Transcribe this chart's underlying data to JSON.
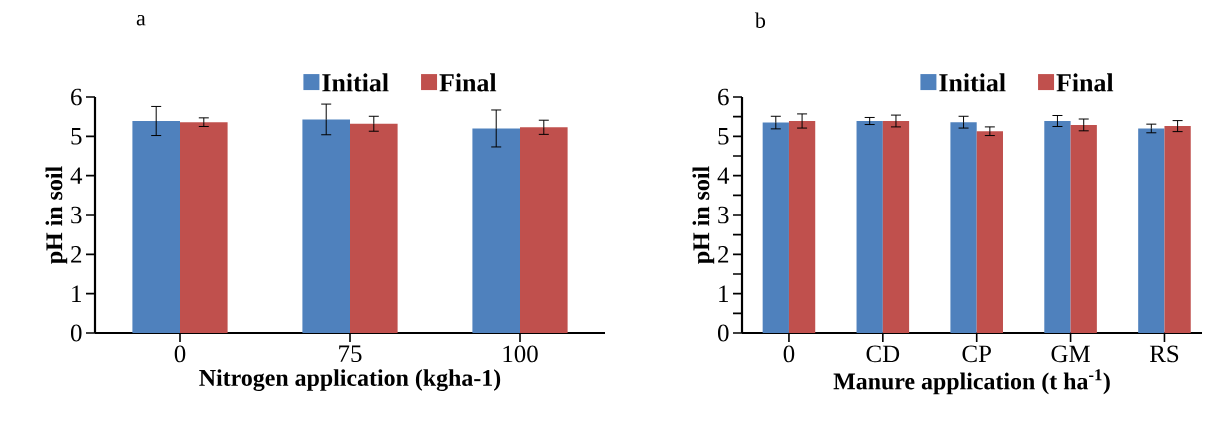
{
  "chart_data": [
    {
      "type": "bar",
      "title": "a",
      "xlabel": "Nitrogen application (kgha-1)",
      "ylabel": "pH in soil",
      "categories": [
        "0",
        "75",
        "100"
      ],
      "series": [
        {
          "name": "Initial",
          "color": "#4f81bd",
          "values": [
            5.39,
            5.43,
            5.2
          ],
          "errors": [
            0.37,
            0.39,
            0.47
          ]
        },
        {
          "name": "Final",
          "color": "#c0504d",
          "values": [
            5.36,
            5.32,
            5.23
          ],
          "errors": [
            0.11,
            0.19,
            0.18
          ]
        }
      ],
      "ylim": [
        0,
        6
      ],
      "yticks": [
        0,
        1,
        2,
        3,
        4,
        5,
        6
      ],
      "legend": "top",
      "grid": false
    },
    {
      "type": "bar",
      "title": "b",
      "xlabel": "Manure application (t ha$^{-1}$)",
      "ylabel": "pH in soil",
      "categories": [
        "0",
        "CD",
        "CP",
        "GM",
        "RS"
      ],
      "series": [
        {
          "name": "Initial",
          "color": "#4f81bd",
          "values": [
            5.35,
            5.39,
            5.36,
            5.39,
            5.2
          ],
          "errors": [
            0.16,
            0.09,
            0.15,
            0.14,
            0.11
          ]
        },
        {
          "name": "Final",
          "color": "#c0504d",
          "values": [
            5.39,
            5.39,
            5.13,
            5.29,
            5.26
          ],
          "errors": [
            0.18,
            0.15,
            0.11,
            0.15,
            0.14
          ]
        }
      ],
      "ylim": [
        0,
        6
      ],
      "yticks": [
        0,
        {
          "value": 0.5,
          "label": null
        },
        1,
        {
          "value": 1.5,
          "label": null
        },
        2,
        {
          "value": 2.5,
          "label": null
        },
        3,
        {
          "value": 3.5,
          "label": null
        },
        4,
        {
          "value": 4.5,
          "label": null
        },
        5,
        {
          "value": 5.5,
          "label": null
        },
        6
      ],
      "legend": "top",
      "grid": false
    }
  ]
}
